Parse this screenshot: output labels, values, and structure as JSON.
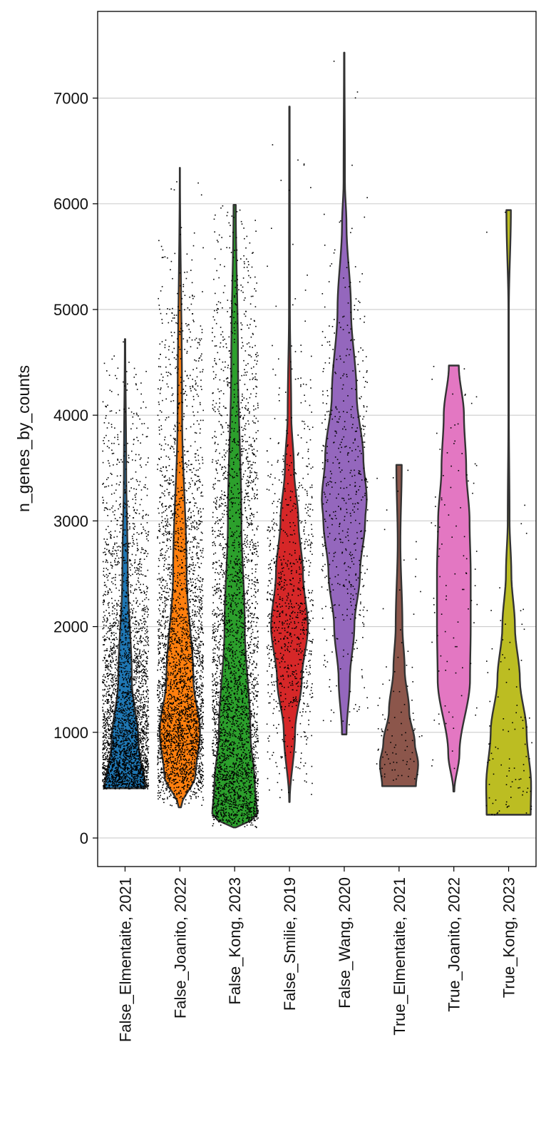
{
  "chart_data": {
    "type": "violin",
    "title": "",
    "xlabel": "",
    "ylabel": "n_genes_by_counts",
    "ylim": [
      -270,
      7820
    ],
    "yticks": [
      0,
      1000,
      2000,
      3000,
      4000,
      5000,
      6000,
      7000
    ],
    "grid": "horizontal",
    "legend": "none",
    "jitter_points": true,
    "categories": [
      "False_Elmentaite, 2021",
      "False_Joanito, 2022",
      "False_Kong, 2023",
      "False_Smilie, 2019",
      "False_Wang, 2020",
      "True_Elmentaite, 2021",
      "True_Joanito, 2022",
      "True_Kong, 2023"
    ],
    "colors": [
      "#1f77b4",
      "#ff7f0e",
      "#2ca02c",
      "#d62728",
      "#9467bd",
      "#8c564b",
      "#e377c2",
      "#bcbd22"
    ],
    "violins": [
      {
        "min": 470,
        "max": 4720,
        "point_density": "very_high",
        "profile": [
          [
            470,
            0.9
          ],
          [
            900,
            0.6
          ],
          [
            1500,
            0.3
          ],
          [
            2500,
            0.12
          ],
          [
            3500,
            0.05
          ],
          [
            4720,
            0.01
          ]
        ]
      },
      {
        "min": 290,
        "max": 6340,
        "point_density": "very_high",
        "profile": [
          [
            290,
            0.05
          ],
          [
            600,
            0.7
          ],
          [
            1000,
            0.9
          ],
          [
            1500,
            0.6
          ],
          [
            2500,
            0.3
          ],
          [
            4000,
            0.1
          ],
          [
            6340,
            0.005
          ]
        ]
      },
      {
        "min": 100,
        "max": 5990,
        "point_density": "very_high",
        "profile": [
          [
            100,
            0.05
          ],
          [
            200,
            1.0
          ],
          [
            500,
            0.9
          ],
          [
            1000,
            0.7
          ],
          [
            2000,
            0.45
          ],
          [
            3000,
            0.3
          ],
          [
            4500,
            0.15
          ],
          [
            5990,
            0.05
          ]
        ]
      },
      {
        "min": 340,
        "max": 6920,
        "point_density": "medium",
        "profile": [
          [
            340,
            0.01
          ],
          [
            1000,
            0.25
          ],
          [
            1500,
            0.55
          ],
          [
            2000,
            0.82
          ],
          [
            2500,
            0.6
          ],
          [
            3000,
            0.4
          ],
          [
            3500,
            0.2
          ],
          [
            4000,
            0.08
          ],
          [
            5000,
            0.02
          ],
          [
            6920,
            0.01
          ]
        ]
      },
      {
        "min": 980,
        "max": 7430,
        "point_density": "low",
        "profile": [
          [
            980,
            0.1
          ],
          [
            1500,
            0.25
          ],
          [
            2000,
            0.45
          ],
          [
            2500,
            0.7
          ],
          [
            3000,
            0.93
          ],
          [
            3200,
            1.0
          ],
          [
            3600,
            0.85
          ],
          [
            4200,
            0.55
          ],
          [
            5000,
            0.3
          ],
          [
            5800,
            0.1
          ],
          [
            6200,
            0.03
          ],
          [
            7430,
            0.01
          ]
        ]
      },
      {
        "min": 490,
        "max": 3530,
        "point_density": "sparse",
        "profile": [
          [
            490,
            0.75
          ],
          [
            700,
            0.85
          ],
          [
            900,
            0.7
          ],
          [
            1200,
            0.45
          ],
          [
            1600,
            0.25
          ],
          [
            2000,
            0.15
          ],
          [
            2800,
            0.06
          ],
          [
            3530,
            0.12
          ]
        ]
      },
      {
        "min": 440,
        "max": 4470,
        "point_density": "sparse",
        "profile": [
          [
            440,
            0.02
          ],
          [
            800,
            0.25
          ],
          [
            1500,
            0.72
          ],
          [
            2000,
            0.75
          ],
          [
            2500,
            0.75
          ],
          [
            3000,
            0.7
          ],
          [
            3500,
            0.55
          ],
          [
            4000,
            0.45
          ],
          [
            4470,
            0.22
          ]
        ]
      },
      {
        "min": 220,
        "max": 5940,
        "point_density": "sparse",
        "profile": [
          [
            220,
            0.98
          ],
          [
            500,
            1.0
          ],
          [
            1000,
            0.8
          ],
          [
            1500,
            0.5
          ],
          [
            2000,
            0.28
          ],
          [
            2500,
            0.12
          ],
          [
            3000,
            0.04
          ],
          [
            4000,
            0.01
          ],
          [
            5000,
            0.01
          ],
          [
            5940,
            0.1
          ]
        ]
      }
    ]
  }
}
